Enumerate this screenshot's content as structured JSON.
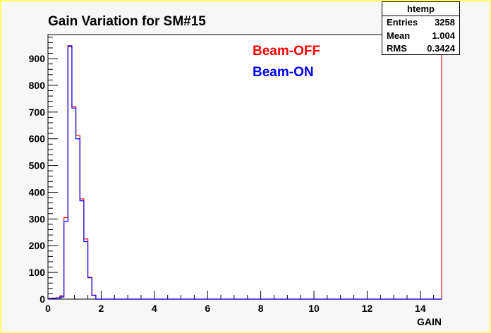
{
  "chart_data": {
    "type": "histogram",
    "title": "Gain Variation for SM#15",
    "xlabel": "GAIN",
    "ylabel": "",
    "xlim": [
      0,
      14.8
    ],
    "ylim": [
      0,
      990
    ],
    "xticks": [
      0,
      2,
      4,
      6,
      8,
      10,
      12,
      14
    ],
    "yticks": [
      0,
      100,
      200,
      300,
      400,
      500,
      600,
      700,
      800,
      900
    ],
    "bin_width": 0.15,
    "series": [
      {
        "name": "Beam-OFF",
        "color": "#ff0000",
        "bin_starts": [
          0,
          0.15,
          0.3,
          0.45,
          0.6,
          0.75,
          0.9,
          1.05,
          1.2,
          1.35,
          1.5,
          1.65
        ],
        "values": [
          3,
          4,
          5,
          12,
          305,
          945,
          720,
          612,
          375,
          225,
          82,
          15
        ]
      },
      {
        "name": "Beam-ON",
        "color": "#0000ff",
        "bin_starts": [
          0,
          0.15,
          0.3,
          0.45,
          0.6,
          0.75,
          0.9,
          1.05,
          1.2,
          1.35,
          1.5,
          1.65
        ],
        "values": [
          2,
          3,
          4,
          8,
          290,
          948,
          715,
          600,
          368,
          215,
          80,
          14
        ]
      }
    ],
    "legend_placement": "top-center",
    "grid": false
  },
  "stats_box": {
    "name": "htemp",
    "rows": [
      {
        "label": "Entries",
        "value": "3258"
      },
      {
        "label": "Mean",
        "value": "1.004"
      },
      {
        "label": "RMS",
        "value": "0.3424"
      }
    ]
  }
}
